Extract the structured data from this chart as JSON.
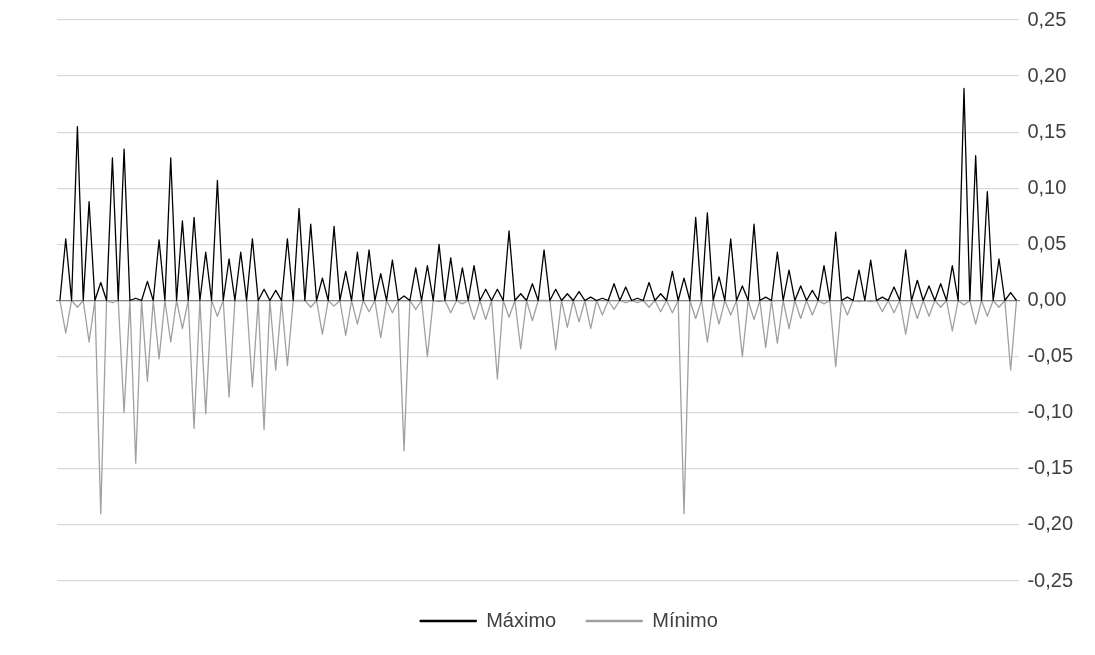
{
  "chart_data": {
    "type": "line",
    "categories": [
      null,
      null,
      null,
      null,
      null,
      null,
      null,
      null,
      null,
      null,
      null,
      null,
      null,
      null,
      null,
      null,
      null,
      null,
      null,
      null,
      null,
      null,
      null,
      null,
      null,
      null,
      null,
      null,
      null,
      null,
      null,
      null,
      null,
      null,
      null,
      null,
      null,
      null,
      null,
      null,
      null,
      null,
      null,
      null,
      null,
      null,
      null,
      null,
      null,
      null,
      null,
      null,
      null,
      null,
      null,
      null,
      null,
      null,
      null,
      null,
      null,
      null,
      null,
      null,
      null,
      null,
      null,
      null,
      null,
      null,
      null,
      null,
      null,
      null,
      null,
      null,
      null,
      null,
      null,
      null,
      null,
      null,
      null,
      null,
      null,
      null,
      null,
      null,
      null,
      null,
      null,
      null,
      null,
      null,
      null,
      null,
      null,
      null,
      null,
      null,
      null,
      null,
      null,
      null,
      null,
      null,
      null,
      null,
      null,
      null,
      null,
      null,
      null,
      null,
      null,
      null,
      null,
      null,
      null,
      null,
      null,
      null,
      null,
      null,
      null,
      null,
      null,
      null,
      null,
      null,
      null,
      null,
      null,
      null,
      null,
      null,
      null,
      null,
      null,
      null,
      null,
      null,
      null,
      null,
      null,
      null,
      null,
      null,
      null,
      null,
      null,
      null,
      null,
      null,
      null,
      null,
      null,
      null,
      null,
      null,
      null,
      null,
      null,
      null,
      null
    ],
    "series": [
      {
        "name": "Máximo",
        "color": "#000000",
        "values": [
          0,
          0.055,
          0,
          0.155,
          0,
          0.088,
          0,
          0.016,
          0,
          0.127,
          0,
          0.135,
          0,
          0.002,
          0,
          0.017,
          0,
          0.054,
          0,
          0.127,
          0,
          0.071,
          0,
          0.074,
          0,
          0.043,
          0,
          0.107,
          0,
          0.037,
          0,
          0.043,
          0,
          0.055,
          0,
          0.01,
          0,
          0.009,
          0,
          0.055,
          0,
          0.082,
          0,
          0.068,
          0,
          0.02,
          0,
          0.066,
          0,
          0.026,
          0,
          0.043,
          0,
          0.045,
          0,
          0.024,
          0,
          0.036,
          0,
          0.004,
          0,
          0.029,
          0,
          0.031,
          0,
          0.05,
          0,
          0.038,
          0,
          0.029,
          0,
          0.031,
          0,
          0.01,
          0,
          0.01,
          0,
          0.062,
          0,
          0.006,
          0,
          0.015,
          0,
          0.045,
          0,
          0.01,
          0,
          0.006,
          0,
          0.008,
          0,
          0.003,
          0,
          0.002,
          0,
          0.015,
          0,
          0.012,
          0,
          0.002,
          0,
          0.016,
          0,
          0.006,
          0,
          0.026,
          0,
          0.02,
          0,
          0.074,
          0,
          0.078,
          0,
          0.021,
          0,
          0.055,
          0,
          0.013,
          0,
          0.068,
          0,
          0.003,
          0,
          0.043,
          0,
          0.027,
          0,
          0.013,
          0,
          0.009,
          0,
          0.031,
          0,
          0.061,
          0,
          0.003,
          0,
          0.027,
          0,
          0.036,
          0,
          0.003,
          0,
          0.012,
          0,
          0.045,
          0,
          0.018,
          0,
          0.013,
          0,
          0.015,
          0,
          0.031,
          0,
          0.189,
          0,
          0.129,
          0,
          0.097,
          0,
          0.037,
          0,
          0.007,
          0
        ]
      },
      {
        "name": "Mínimo",
        "color": "#a0a0a0",
        "values": [
          0,
          -0.029,
          0,
          -0.006,
          0,
          -0.037,
          0,
          -0.19,
          0,
          -0.002,
          0,
          -0.1,
          0,
          -0.145,
          0,
          -0.072,
          0,
          -0.052,
          0,
          -0.037,
          0,
          -0.025,
          0,
          -0.114,
          0,
          -0.101,
          0,
          -0.014,
          0,
          -0.086,
          0,
          0,
          0,
          -0.077,
          0,
          -0.115,
          0,
          -0.062,
          0,
          -0.058,
          0,
          0,
          0,
          -0.006,
          0,
          -0.03,
          0,
          -0.005,
          0,
          -0.031,
          0,
          -0.021,
          0,
          -0.01,
          0,
          -0.033,
          0,
          -0.011,
          0,
          -0.134,
          0,
          -0.008,
          0,
          -0.05,
          0,
          -0.001,
          0,
          -0.011,
          0,
          -0.003,
          0,
          -0.017,
          0,
          -0.017,
          0,
          -0.07,
          0,
          -0.015,
          0,
          -0.043,
          0,
          -0.018,
          0,
          0,
          0,
          -0.044,
          0,
          -0.024,
          0,
          -0.019,
          0,
          -0.025,
          0,
          -0.013,
          0,
          -0.008,
          0,
          -0.002,
          0,
          -0.002,
          0,
          -0.006,
          0,
          -0.01,
          0,
          -0.011,
          0,
          -0.19,
          0,
          -0.016,
          0,
          -0.037,
          0,
          -0.021,
          0,
          -0.013,
          0,
          -0.05,
          0,
          -0.017,
          0,
          -0.042,
          0,
          -0.038,
          0,
          -0.025,
          0,
          -0.016,
          0,
          -0.013,
          0,
          -0.003,
          0,
          -0.059,
          0,
          -0.013,
          0,
          -0.001,
          0,
          -0.001,
          0,
          -0.01,
          0,
          -0.011,
          0,
          -0.03,
          0,
          -0.016,
          0,
          -0.014,
          0,
          -0.006,
          0,
          -0.027,
          0,
          -0.004,
          0,
          -0.021,
          0,
          -0.014,
          0,
          -0.006,
          0,
          -0.062,
          0
        ]
      }
    ],
    "ylim": [
      -0.25,
      0.25
    ],
    "yticks": [
      {
        "value": 0.25,
        "label": "0,25"
      },
      {
        "value": 0.2,
        "label": "0,20"
      },
      {
        "value": 0.15,
        "label": "0,15"
      },
      {
        "value": 0.1,
        "label": "0,10"
      },
      {
        "value": 0.05,
        "label": "0,05"
      },
      {
        "value": 0,
        "label": "0,00"
      },
      {
        "value": -0.05,
        "label": "-0,05"
      },
      {
        "value": -0.1,
        "label": "-0,10"
      },
      {
        "value": -0.15,
        "label": "-0,15"
      },
      {
        "value": -0.2,
        "label": "-0,20"
      },
      {
        "value": -0.25,
        "label": "-0,25"
      }
    ],
    "grid": "y",
    "legend": "bottom",
    "tick_labels": "y",
    "marker": "none",
    "line_style": "solid"
  }
}
